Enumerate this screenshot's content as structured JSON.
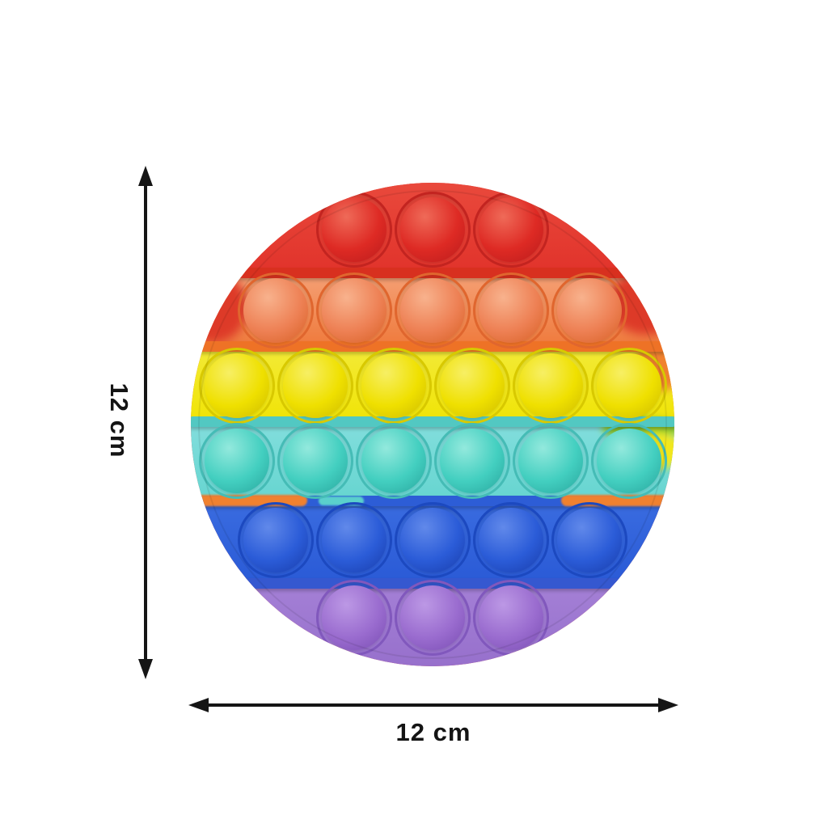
{
  "product": {
    "name": "Rainbow round push pop bubble fidget toy",
    "shape": "circle",
    "total_bubbles": 28
  },
  "dimensions": {
    "height_label": "12 cm",
    "width_label": "12 cm"
  },
  "arrows": {
    "color": "#151515"
  },
  "toy": {
    "rows": [
      {
        "color_name": "red",
        "bubbles": 3,
        "band_top": "#e9493c",
        "band_bottom": "#e1332b",
        "ring": "#c32420",
        "dome_light": "#ef6a58",
        "dome_base": "#de2a24",
        "dome_dark": "#bc1d1d",
        "divider": null
      },
      {
        "color_name": "orange",
        "bubbles": 5,
        "band_top": "#f5a176",
        "band_bottom": "#ef7a3c",
        "ring": "#e0662e",
        "dome_light": "#f8b28d",
        "dome_base": "#ee8155",
        "dome_dark": "#d96227",
        "divider": "#d8301f"
      },
      {
        "color_name": "yellow",
        "bubbles": 6,
        "band_top": "#f3ea38",
        "band_bottom": "#f0e406",
        "ring": "#d8c900",
        "dome_light": "#f7ef64",
        "dome_base": "#efe000",
        "dome_dark": "#cfbd00",
        "divider": "#ee7226"
      },
      {
        "color_name": "cyan",
        "bubbles": 6,
        "band_top": "#83dedd",
        "band_bottom": "#66d5d0",
        "ring": "#45bcb6",
        "dome_light": "#93e9dd",
        "dome_base": "#43cfc0",
        "dome_dark": "#2aa89f",
        "divider": "#52c8c2"
      },
      {
        "color_name": "blue",
        "bubbles": 5,
        "band_top": "#3a6ce0",
        "band_bottom": "#2a5ad6",
        "ring": "#1c49c0",
        "dome_light": "#6189ea",
        "dome_base": "#2b5cd8",
        "dome_dark": "#1a3fae",
        "divider": "#2d5dd6"
      },
      {
        "color_name": "purple",
        "bubbles": 3,
        "band_top": "#a480d6",
        "band_bottom": "#9770cc",
        "ring": "#8158bd",
        "dome_light": "#bc98e5",
        "dome_base": "#9a6ccf",
        "dome_dark": "#7c4fb5",
        "divider": "#3558d0"
      }
    ],
    "accent_colors": {
      "red": "#dd3a28",
      "orange": "#f0812f",
      "green": "#8bc832",
      "yellow": "#f2e71c",
      "cyan_patch": "#5ad0cc"
    }
  }
}
